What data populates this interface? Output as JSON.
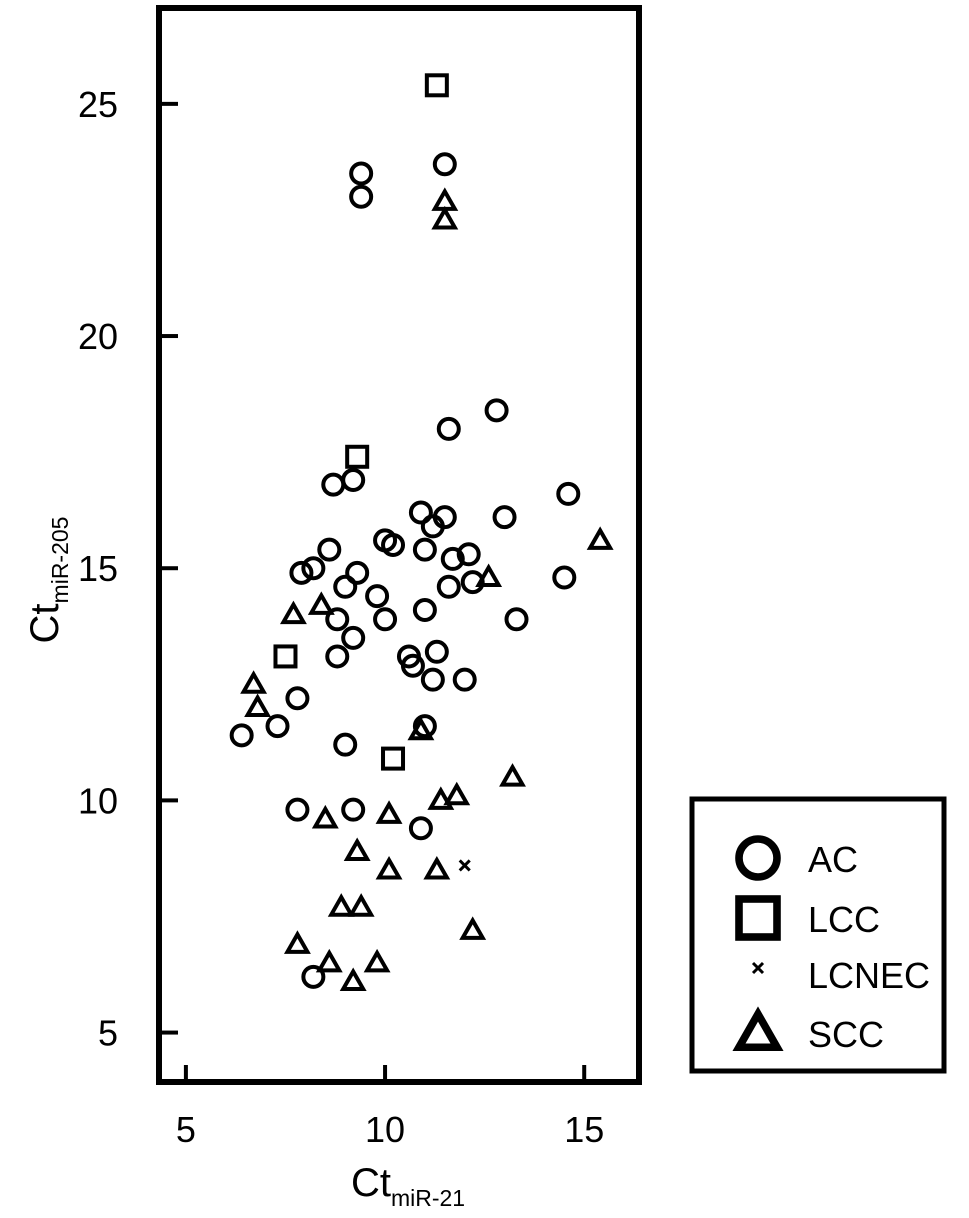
{
  "chart_data": {
    "type": "scatter",
    "title": "",
    "xlabel": {
      "main": "Ct",
      "sub": "miR-21"
    },
    "ylabel": {
      "main": "Ct",
      "sub": "miR-205"
    },
    "xlim": [
      4.4,
      16.3
    ],
    "ylim": [
      4.0,
      27.0
    ],
    "xticks": [
      5,
      10,
      15
    ],
    "yticks": [
      5,
      10,
      15,
      20,
      25
    ],
    "grid": false,
    "legend_position": "bottom-right",
    "series": [
      {
        "name": "AC",
        "marker": "circle",
        "points": [
          [
            9.4,
            23.5
          ],
          [
            9.4,
            23.0
          ],
          [
            11.5,
            23.7
          ],
          [
            12.8,
            18.4
          ],
          [
            11.6,
            18.0
          ],
          [
            8.7,
            16.8
          ],
          [
            9.2,
            16.9
          ],
          [
            14.6,
            16.6
          ],
          [
            13.0,
            16.1
          ],
          [
            10.9,
            16.2
          ],
          [
            11.5,
            16.1
          ],
          [
            11.2,
            15.9
          ],
          [
            10.0,
            15.6
          ],
          [
            10.2,
            15.5
          ],
          [
            11.0,
            15.4
          ],
          [
            12.1,
            15.3
          ],
          [
            11.7,
            15.2
          ],
          [
            8.6,
            15.4
          ],
          [
            8.2,
            15.0
          ],
          [
            7.9,
            14.9
          ],
          [
            9.3,
            14.9
          ],
          [
            9.0,
            14.6
          ],
          [
            12.2,
            14.7
          ],
          [
            11.6,
            14.6
          ],
          [
            14.5,
            14.8
          ],
          [
            9.8,
            14.4
          ],
          [
            11.0,
            14.1
          ],
          [
            10.0,
            13.9
          ],
          [
            8.8,
            13.9
          ],
          [
            9.2,
            13.5
          ],
          [
            13.3,
            13.9
          ],
          [
            8.8,
            13.1
          ],
          [
            10.6,
            13.1
          ],
          [
            11.3,
            13.2
          ],
          [
            10.7,
            12.9
          ],
          [
            11.2,
            12.6
          ],
          [
            12.0,
            12.6
          ],
          [
            7.3,
            11.6
          ],
          [
            6.4,
            11.4
          ],
          [
            7.8,
            12.2
          ],
          [
            11.0,
            11.6
          ],
          [
            9.0,
            11.2
          ],
          [
            7.8,
            9.8
          ],
          [
            9.2,
            9.8
          ],
          [
            10.9,
            9.4
          ],
          [
            8.2,
            6.2
          ]
        ]
      },
      {
        "name": "LCC",
        "marker": "square",
        "points": [
          [
            11.3,
            25.4
          ],
          [
            9.3,
            17.4
          ],
          [
            7.5,
            13.1
          ],
          [
            10.2,
            10.9
          ]
        ]
      },
      {
        "name": "LCNEC",
        "marker": "x",
        "points": [
          [
            12.0,
            8.6
          ]
        ]
      },
      {
        "name": "SCC",
        "marker": "triangle",
        "points": [
          [
            11.5,
            22.9
          ],
          [
            11.5,
            22.5
          ],
          [
            15.4,
            15.6
          ],
          [
            12.6,
            14.8
          ],
          [
            8.4,
            14.2
          ],
          [
            7.7,
            14.0
          ],
          [
            6.7,
            12.5
          ],
          [
            6.8,
            12.0
          ],
          [
            10.9,
            11.5
          ],
          [
            13.2,
            10.5
          ],
          [
            11.4,
            10.0
          ],
          [
            11.8,
            10.1
          ],
          [
            8.5,
            9.6
          ],
          [
            10.1,
            9.7
          ],
          [
            9.3,
            8.9
          ],
          [
            10.1,
            8.5
          ],
          [
            11.3,
            8.5
          ],
          [
            8.9,
            7.7
          ],
          [
            9.4,
            7.7
          ],
          [
            12.2,
            7.2
          ],
          [
            7.8,
            6.9
          ],
          [
            8.6,
            6.5
          ],
          [
            9.8,
            6.5
          ],
          [
            9.2,
            6.1
          ]
        ]
      }
    ]
  }
}
